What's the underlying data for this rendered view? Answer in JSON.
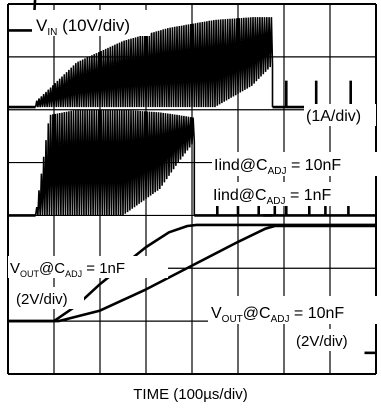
{
  "chart_data": {
    "type": "line",
    "x_divisions": 8,
    "y_divisions": 7,
    "grid": true,
    "xlabel": "TIME (100µs/div)",
    "x_units_per_div_us": 100,
    "colors": {
      "trace": "#000000",
      "grid": "#000000",
      "background": "#ffffff"
    },
    "series": [
      {
        "name": "V_IN",
        "scale": "10V/div",
        "ground_div": 0.5,
        "x": [
          0,
          0.55,
          0.6,
          0.7,
          8
        ],
        "y": [
          0,
          0,
          0.75,
          0.9,
          0.9
        ]
      },
      {
        "name": "Iind@C_ADJ = 10nF",
        "scale": "1A/div",
        "ground_div": 1.95,
        "burst_start": 0.6,
        "burst_end": 5.75,
        "envelope_x": [
          0.6,
          1.5,
          2.5,
          3.5,
          4.5,
          5.3,
          5.75
        ],
        "envelope_top": [
          0.1,
          0.85,
          1.25,
          1.5,
          1.65,
          1.7,
          1.7
        ],
        "envelope_bottom": [
          0,
          0,
          0,
          0,
          0,
          0.4,
          0.8
        ],
        "sparse_pulses_x": [
          6.05,
          6.7,
          7.45
        ],
        "sparse_pulse_height": 0.5
      },
      {
        "name": "Iind@C_ADJ = 1nF",
        "scale": "1A/div",
        "ground_div": 4.0,
        "burst_start": 0.6,
        "burst_end": 4.05,
        "envelope_x": [
          0.6,
          0.9,
          1.5,
          2.5,
          3.3,
          3.7,
          4.05
        ],
        "envelope_top": [
          0,
          1.9,
          2.0,
          2.0,
          1.95,
          1.9,
          1.85
        ],
        "envelope_bottom": [
          0,
          0,
          0,
          0,
          0.5,
          1.0,
          1.4
        ],
        "sparse_pulses_x": [
          4.55,
          5.0,
          5.45,
          5.8,
          6.05,
          6.55,
          6.9,
          7.4
        ],
        "sparse_pulse_height": 0.6
      },
      {
        "name": "V_OUT@C_ADJ = 1nF",
        "scale": "2V/div",
        "ground_div": 6.0,
        "x": [
          0,
          1.0,
          1.5,
          2.0,
          2.5,
          3.0,
          3.5,
          3.9,
          4.1,
          8
        ],
        "y": [
          0,
          0,
          0.3,
          0.7,
          1.05,
          1.4,
          1.68,
          1.8,
          1.82,
          1.82
        ]
      },
      {
        "name": "V_OUT@C_ADJ = 10nF",
        "scale": "2V/div",
        "ground_div": 6.0,
        "x": [
          0,
          1.1,
          2.0,
          3.0,
          4.0,
          5.0,
          5.6,
          5.8,
          8
        ],
        "y": [
          0,
          0,
          0.2,
          0.6,
          1.05,
          1.5,
          1.75,
          1.8,
          1.8
        ]
      }
    ],
    "annotations": {
      "vin": {
        "pre": "V",
        "sub": "IN",
        "post": " (10V/div)"
      },
      "i_scale": "(1A/div)",
      "iind_10nf": {
        "pre": "Iind@C",
        "sub": "ADJ",
        "post": " = 10nF"
      },
      "iind_1nf": {
        "pre": "Iind@C",
        "sub": "ADJ",
        "post": " = 1nF"
      },
      "vout_1nf": {
        "pre": "V",
        "sub": "OUT",
        "mid": "@C",
        "sub2": "ADJ",
        "post": " = 1nF"
      },
      "vout_1nf_scale": "(2V/div)",
      "vout_10nf": {
        "pre": "V",
        "sub": "OUT",
        "mid": "@C",
        "sub2": "ADJ",
        "post": " = 10nF"
      },
      "vout_10nf_scale": "(2V/div)"
    }
  }
}
